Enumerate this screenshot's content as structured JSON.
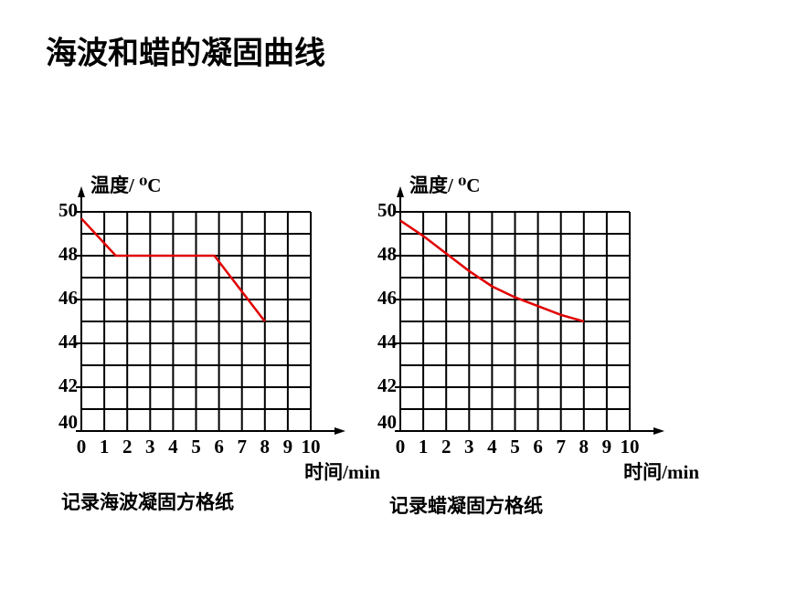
{
  "title": "海波和蜡的凝固曲线",
  "chart_data": [
    {
      "type": "line",
      "y_label": "温度/ ⁰C",
      "x_label": "时间/min",
      "caption": "记录海波凝固方格纸",
      "xlim": [
        0,
        10
      ],
      "xticks": [
        0,
        1,
        2,
        3,
        4,
        5,
        6,
        7,
        8,
        9,
        10
      ],
      "ylim": [
        40,
        50
      ],
      "yticks": [
        40,
        42,
        44,
        46,
        48,
        50
      ],
      "grid": true,
      "x": [
        0,
        1.5,
        5.8,
        8
      ],
      "series": [
        {
          "color": "#e00000",
          "values": [
            49.7,
            48,
            48,
            45
          ]
        }
      ]
    },
    {
      "type": "line",
      "y_label": "温度/ ⁰C",
      "x_label": "时间/min",
      "caption": "记录蜡凝固方格纸",
      "xlim": [
        0,
        10
      ],
      "xticks": [
        0,
        1,
        2,
        3,
        4,
        5,
        6,
        7,
        8,
        9,
        10
      ],
      "ylim": [
        40,
        50
      ],
      "yticks": [
        40,
        42,
        44,
        46,
        48,
        50
      ],
      "grid": true,
      "x": [
        0,
        1,
        2,
        3,
        4,
        5,
        6,
        7,
        8
      ],
      "series": [
        {
          "color": "#e00000",
          "values": [
            49.6,
            48.9,
            48.1,
            47.3,
            46.6,
            46.1,
            45.7,
            45.3,
            45.0
          ]
        }
      ]
    }
  ]
}
